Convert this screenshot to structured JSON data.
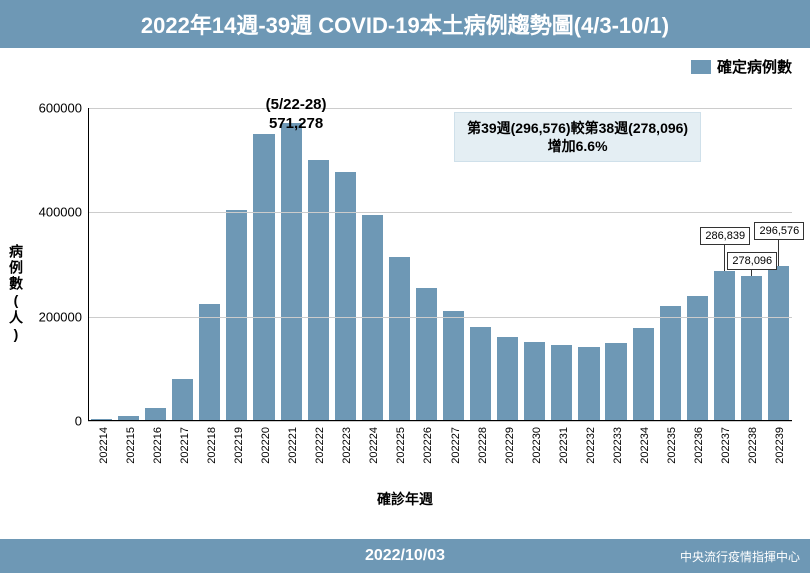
{
  "title": "2022年14週-39週 COVID-19本土病例趨勢圖(4/3-10/1)",
  "title_fontsize": 22,
  "legend": {
    "swatch_color": "#6e98b5",
    "label": "確定病例數"
  },
  "footer": {
    "date": "2022/10/03",
    "org": "中央流行疫情指揮中心"
  },
  "chart": {
    "type": "bar",
    "bar_color": "#6e98b5",
    "background_color": "#ffffff",
    "grid_color": "#cccccc",
    "y_title": "病例數(人)",
    "x_title": "確診年週",
    "ylim": [
      0,
      600000
    ],
    "yticks": [
      0,
      200000,
      400000,
      600000
    ],
    "ytick_labels": [
      "0",
      "200000",
      "400000",
      "600000"
    ],
    "bar_width_ratio": 0.78,
    "categories": [
      "202214",
      "202215",
      "202216",
      "202217",
      "202218",
      "202219",
      "202220",
      "202221",
      "202222",
      "202223",
      "202224",
      "202225",
      "202226",
      "202227",
      "202228",
      "202229",
      "202230",
      "202231",
      "202232",
      "202233",
      "202234",
      "202235",
      "202236",
      "202237",
      "202238",
      "202239"
    ],
    "values": [
      3000,
      9000,
      24000,
      80000,
      225000,
      405000,
      550000,
      571278,
      500000,
      478000,
      395000,
      315000,
      255000,
      210000,
      181000,
      162000,
      152000,
      145000,
      142000,
      150000,
      178000,
      220000,
      240000,
      286839,
      278096,
      296576
    ],
    "peak_annotation": {
      "line1": "(5/22-28)",
      "line2": "571,278",
      "over_index": 7
    },
    "callout": {
      "line1": "第39週(296,576)較第38週(278,096)",
      "line2": "增加6.6%"
    },
    "end_labels": [
      {
        "index": 23,
        "text": "286,839",
        "y_offset": -44
      },
      {
        "index": 24,
        "text": "278,096",
        "y_offset": -24
      },
      {
        "index": 25,
        "text": "296,576",
        "y_offset": -44
      }
    ]
  }
}
